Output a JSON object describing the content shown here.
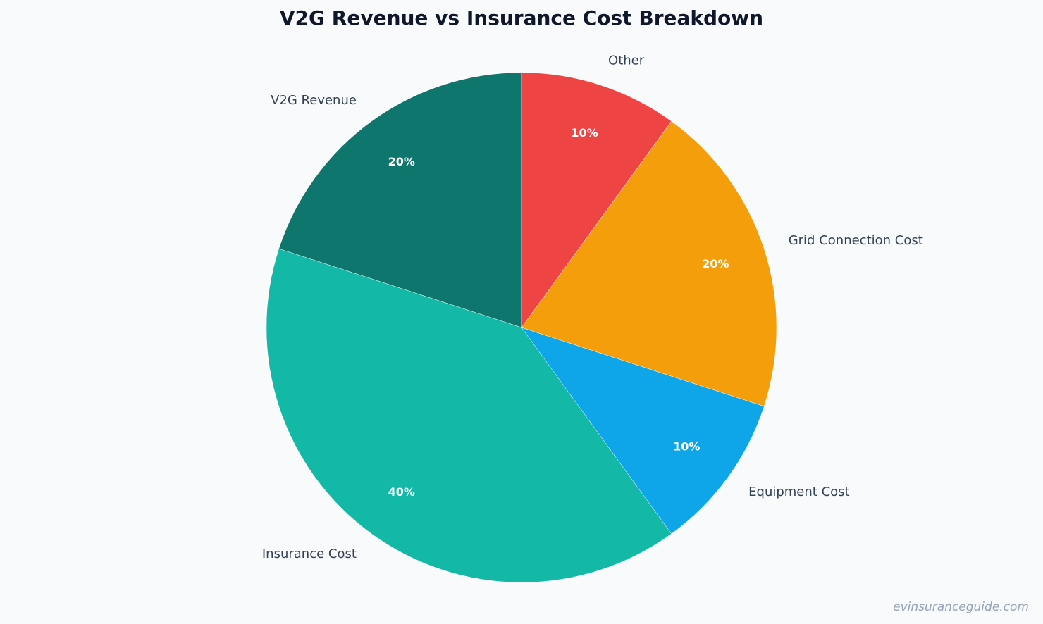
{
  "chart_data": {
    "type": "pie",
    "title": "V2G Revenue vs Insurance Cost Breakdown",
    "categories": [
      "V2G Revenue",
      "Insurance Cost",
      "Equipment Cost",
      "Grid Connection Cost",
      "Other"
    ],
    "values": [
      20,
      40,
      10,
      20,
      10
    ],
    "value_labels": [
      "20%",
      "40%",
      "10%",
      "20%",
      "10%"
    ],
    "colors": [
      "#0f766e",
      "#14b8a6",
      "#0ea5e9",
      "#f59e0b",
      "#ef4444"
    ],
    "start_angle": 90,
    "direction": "counterclockwise",
    "watermark": "evinsuranceguide.com"
  }
}
